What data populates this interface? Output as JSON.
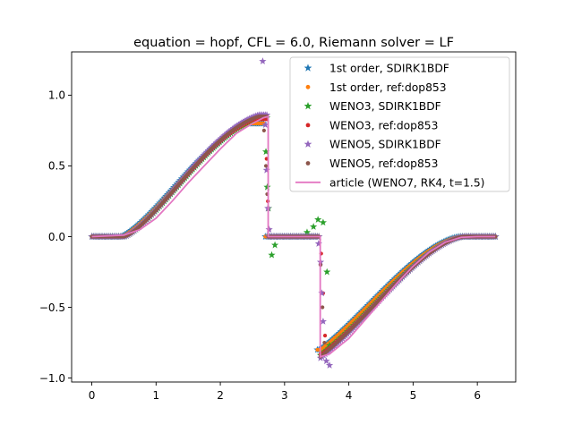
{
  "chart_data": {
    "type": "scatter",
    "title": "equation = hopf, CFL = 6.0, Riemann solver = LF",
    "xlabel": "",
    "ylabel": "",
    "xlim": [
      -0.314,
      6.597
    ],
    "ylim": [
      -1.028,
      1.306
    ],
    "xticks": [
      0,
      1,
      2,
      3,
      4,
      5,
      6
    ],
    "yticks": [
      -1.0,
      -0.5,
      0.0,
      0.5,
      1.0
    ],
    "xtick_labels": [
      "0",
      "1",
      "2",
      "3",
      "4",
      "5",
      "6"
    ],
    "ytick_labels": [
      "−1.0",
      "−0.5",
      "0.0",
      "0.5",
      "1.0"
    ],
    "grid": false,
    "legend_position": "top-right",
    "series": [
      {
        "name": "1st order, SDIRK1BDF",
        "marker": "star",
        "color": "#1f77b4",
        "profile": {
          "s": 2.745,
          "a": 3.555,
          "amp": 0.82,
          "shift": -0.06,
          "pos_max": 0.8,
          "neg_min": -0.8
        }
      },
      {
        "name": "1st order, ref:dop853",
        "marker": "dot",
        "color": "#ff7f0e",
        "profile": {
          "s": 2.745,
          "a": 3.555,
          "amp": 0.82,
          "shift": -0.05,
          "pos_max": 0.8,
          "neg_min": -0.8
        }
      },
      {
        "name": "WENO3, SDIRK1BDF",
        "marker": "star",
        "color": "#2ca02c",
        "profile": {
          "s": 2.745,
          "a": 3.555,
          "amp": 0.84,
          "shift": 0.0,
          "pos_max": 0.84,
          "neg_min": -0.84
        },
        "extra_points": [
          [
            2.71,
            0.6
          ],
          [
            2.73,
            0.35
          ],
          [
            2.75,
            0.2
          ],
          [
            2.8,
            -0.13
          ],
          [
            2.85,
            -0.06
          ],
          [
            3.35,
            0.03
          ],
          [
            3.45,
            0.07
          ],
          [
            3.52,
            0.12
          ],
          [
            3.6,
            0.1
          ],
          [
            3.66,
            -0.25
          ],
          [
            3.7,
            -0.77
          ]
        ]
      },
      {
        "name": "WENO3, ref:dop853",
        "marker": "dot",
        "color": "#d62728",
        "profile": {
          "s": 2.745,
          "a": 3.555,
          "amp": 0.84,
          "shift": 0.0,
          "pos_max": 0.83,
          "neg_min": -0.83
        },
        "extra_points": [
          [
            2.72,
            0.55
          ],
          [
            2.74,
            0.25
          ],
          [
            2.76,
            0.05
          ],
          [
            3.57,
            -0.12
          ],
          [
            3.6,
            -0.4
          ],
          [
            3.63,
            -0.7
          ]
        ]
      },
      {
        "name": "WENO5, SDIRK1BDF",
        "marker": "star",
        "color": "#9467bd",
        "profile": {
          "s": 2.745,
          "a": 3.555,
          "amp": 0.86,
          "shift": 0.0,
          "pos_max": 0.86,
          "neg_min": -0.88
        },
        "extra_points": [
          [
            2.66,
            1.24
          ],
          [
            2.7,
            0.79
          ],
          [
            2.72,
            0.47
          ],
          [
            2.74,
            0.2
          ],
          [
            2.76,
            0.05
          ],
          [
            3.53,
            -0.05
          ],
          [
            3.56,
            -0.18
          ],
          [
            3.58,
            -0.4
          ],
          [
            3.6,
            -0.6
          ],
          [
            3.65,
            -0.88
          ],
          [
            3.7,
            -0.91
          ]
        ]
      },
      {
        "name": "WENO5, ref:dop853",
        "marker": "dot",
        "color": "#8c564b",
        "profile": {
          "s": 2.745,
          "a": 3.555,
          "amp": 0.85,
          "shift": 0.0,
          "pos_max": 0.85,
          "neg_min": -0.85
        },
        "extra_points": [
          [
            2.68,
            0.75
          ],
          [
            2.71,
            0.5
          ],
          [
            2.73,
            0.3
          ],
          [
            3.56,
            -0.2
          ],
          [
            3.59,
            -0.5
          ],
          [
            3.62,
            -0.75
          ]
        ]
      },
      {
        "name": "article (WENO7, RK4, t=1.5)",
        "marker": "line",
        "color": "#e377c2",
        "points": [
          [
            0,
            0
          ],
          [
            0.5,
            0.01
          ],
          [
            0.75,
            0.05
          ],
          [
            1.0,
            0.13
          ],
          [
            1.25,
            0.25
          ],
          [
            1.5,
            0.38
          ],
          [
            1.75,
            0.5
          ],
          [
            2.0,
            0.62
          ],
          [
            2.25,
            0.73
          ],
          [
            2.5,
            0.8
          ],
          [
            2.67,
            0.84
          ],
          [
            2.745,
            0.85
          ],
          [
            2.745,
            0.0
          ],
          [
            3.555,
            0.0
          ],
          [
            3.555,
            -0.85
          ],
          [
            3.7,
            -0.83
          ],
          [
            4.0,
            -0.72
          ],
          [
            4.25,
            -0.59
          ],
          [
            4.5,
            -0.46
          ],
          [
            4.75,
            -0.33
          ],
          [
            5.0,
            -0.21
          ],
          [
            5.25,
            -0.11
          ],
          [
            5.5,
            -0.04
          ],
          [
            5.75,
            -0.005
          ],
          [
            6.0,
            0.0
          ],
          [
            6.28,
            0.0
          ]
        ]
      }
    ]
  }
}
